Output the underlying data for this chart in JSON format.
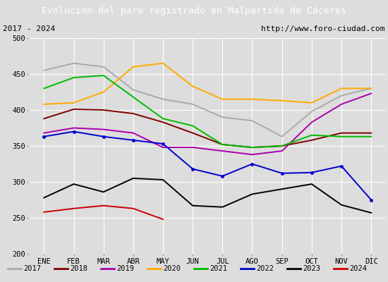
{
  "title": "Evolucion del paro registrado en Malpartida de Cáceres",
  "subtitle_left": "2017 - 2024",
  "subtitle_right": "http://www.foro-ciudad.com",
  "months": [
    "ENE",
    "FEB",
    "MAR",
    "ABR",
    "MAY",
    "JUN",
    "JUL",
    "AGO",
    "SEP",
    "OCT",
    "NOV",
    "DIC"
  ],
  "ylim": [
    200,
    500
  ],
  "yticks": [
    200,
    250,
    300,
    350,
    400,
    450,
    500
  ],
  "series": {
    "2017": {
      "color": "#aaaaaa",
      "values": [
        455,
        465,
        460,
        428,
        415,
        408,
        390,
        385,
        363,
        398,
        420,
        430
      ]
    },
    "2018": {
      "color": "#800000",
      "values": [
        388,
        401,
        400,
        395,
        383,
        368,
        352,
        348,
        350,
        358,
        368,
        368
      ]
    },
    "2019": {
      "color": "#aa00aa",
      "values": [
        368,
        375,
        373,
        368,
        348,
        348,
        343,
        338,
        343,
        383,
        408,
        423
      ]
    },
    "2020": {
      "color": "#ffaa00",
      "values": [
        408,
        410,
        425,
        460,
        465,
        433,
        415,
        415,
        413,
        410,
        430,
        430
      ]
    },
    "2021": {
      "color": "#00bb00",
      "values": [
        430,
        445,
        448,
        418,
        388,
        378,
        352,
        348,
        350,
        365,
        363,
        363
      ]
    },
    "2022": {
      "color": "#0000cc",
      "values": [
        363,
        370,
        363,
        358,
        353,
        318,
        308,
        325,
        312,
        313,
        322,
        275
      ]
    },
    "2023": {
      "color": "#000000",
      "values": [
        278,
        297,
        286,
        305,
        303,
        267,
        265,
        283,
        290,
        297,
        268,
        257
      ]
    },
    "2024": {
      "color": "#cc0000",
      "values": [
        258,
        263,
        267,
        263,
        248,
        null,
        null,
        null,
        null,
        null,
        null,
        null
      ]
    }
  },
  "bg_color": "#dddddd",
  "plot_bg_color": "#dddddd",
  "title_bg_color": "#5588cc",
  "title_color": "white",
  "grid_color": "white",
  "subtitle_box_color": "white",
  "legend_box_color": "white"
}
